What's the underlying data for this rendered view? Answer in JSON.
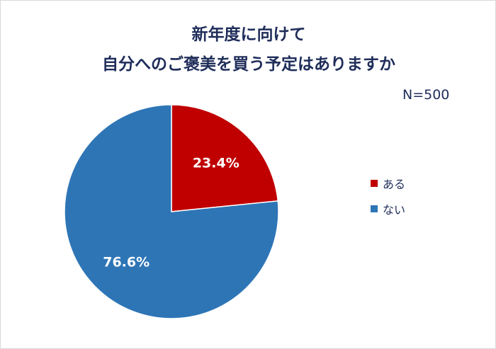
{
  "chart_data": {
    "type": "pie",
    "title_lines": [
      "新年度に向けて",
      "自分へのご褒美を買う予定はありますか"
    ],
    "sample_size": "N=500",
    "slices": [
      {
        "name": "ある",
        "value": 23.4,
        "label": "23.4%",
        "color": "#c00000"
      },
      {
        "name": "ない",
        "value": 76.6,
        "label": "76.6%",
        "color": "#2e75b6"
      }
    ],
    "legend_position": "right"
  }
}
